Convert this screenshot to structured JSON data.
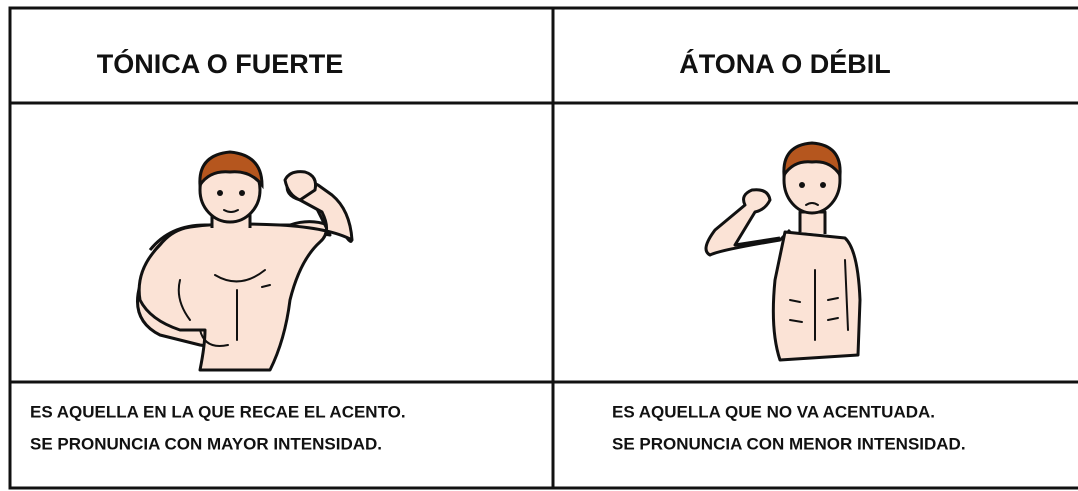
{
  "table": {
    "headers": [
      "TÓNICA O FUERTE",
      "ÁTONA O DÉBIL"
    ],
    "descriptions": [
      [
        "ES AQUELLA EN LA QUE RECAE EL ACENTO.",
        "SE PRONUNCIA CON MAYOR INTENSIDAD."
      ],
      [
        "ES AQUELLA QUE NO VA ACENTUADA.",
        "SE PRONUNCIA CON MENOR INTENSIDAD."
      ]
    ]
  }
}
